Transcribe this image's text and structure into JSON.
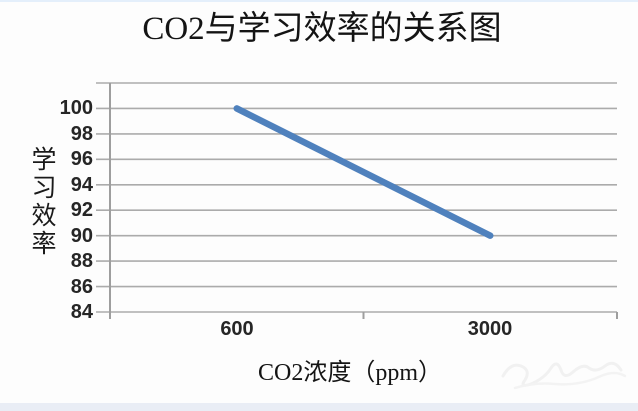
{
  "window": {
    "background": "#fdfdfd",
    "top_strip_color": "#e4effb",
    "bottom_strip_color": "#e9edf5"
  },
  "chart_data": {
    "type": "line",
    "title": "CO2与学习效率的关系图",
    "xlabel": "CO2浓度（ppm）",
    "ylabel": "学习效率",
    "categories": [
      "600",
      "3000"
    ],
    "series": [
      {
        "name": "",
        "color": "#4f81bd",
        "values": [
          100,
          90
        ]
      }
    ],
    "y_ticks": [
      100,
      98,
      96,
      94,
      92,
      90,
      88,
      86,
      84
    ],
    "ylim": [
      84,
      102
    ],
    "y_step": 2,
    "grid": true,
    "grid_color": "#ababab",
    "axis_color": "#9e9e9e",
    "legend": false
  }
}
